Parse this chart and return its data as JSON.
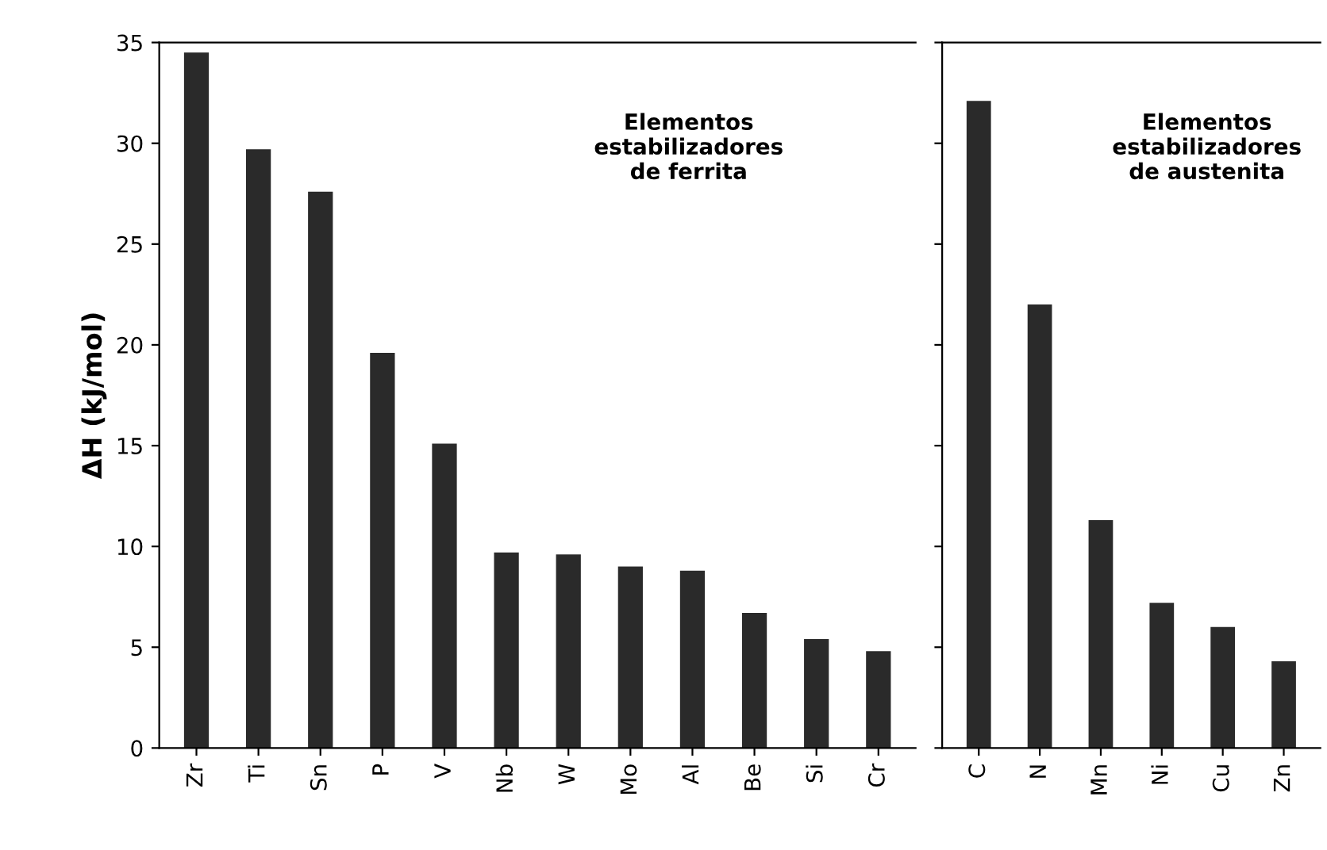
{
  "chart_data": [
    {
      "type": "bar",
      "ylabel": "ΔH (kJ/mol)",
      "categories": [
        "Zr",
        "Ti",
        "Sn",
        "P",
        "V",
        "Nb",
        "W",
        "Mo",
        "Al",
        "Be",
        "Si",
        "Cr"
      ],
      "values": [
        34.5,
        29.7,
        27.6,
        19.6,
        15.1,
        9.7,
        9.6,
        9.0,
        8.8,
        6.7,
        5.4,
        4.8
      ],
      "color": "#2a2a2a",
      "ylim": [
        0,
        35
      ],
      "yticks": [
        0,
        5,
        10,
        15,
        20,
        25,
        30,
        35
      ],
      "grid": false,
      "annotations": [
        "Elementos\nestabilizadores\nde ferrita"
      ]
    },
    {
      "type": "bar",
      "categories": [
        "C",
        "N",
        "Mn",
        "Ni",
        "Cu",
        "Zn"
      ],
      "values": [
        32.1,
        22.0,
        11.3,
        7.2,
        6.0,
        4.3
      ],
      "color": "#2a2a2a",
      "ylim": [
        0,
        35
      ],
      "yticks": [
        0,
        5,
        10,
        15,
        20,
        25,
        30,
        35
      ],
      "tick_labels": "x",
      "grid": false,
      "annotations": [
        "Elementos\nestabilizadores\nde austenita"
      ]
    }
  ]
}
